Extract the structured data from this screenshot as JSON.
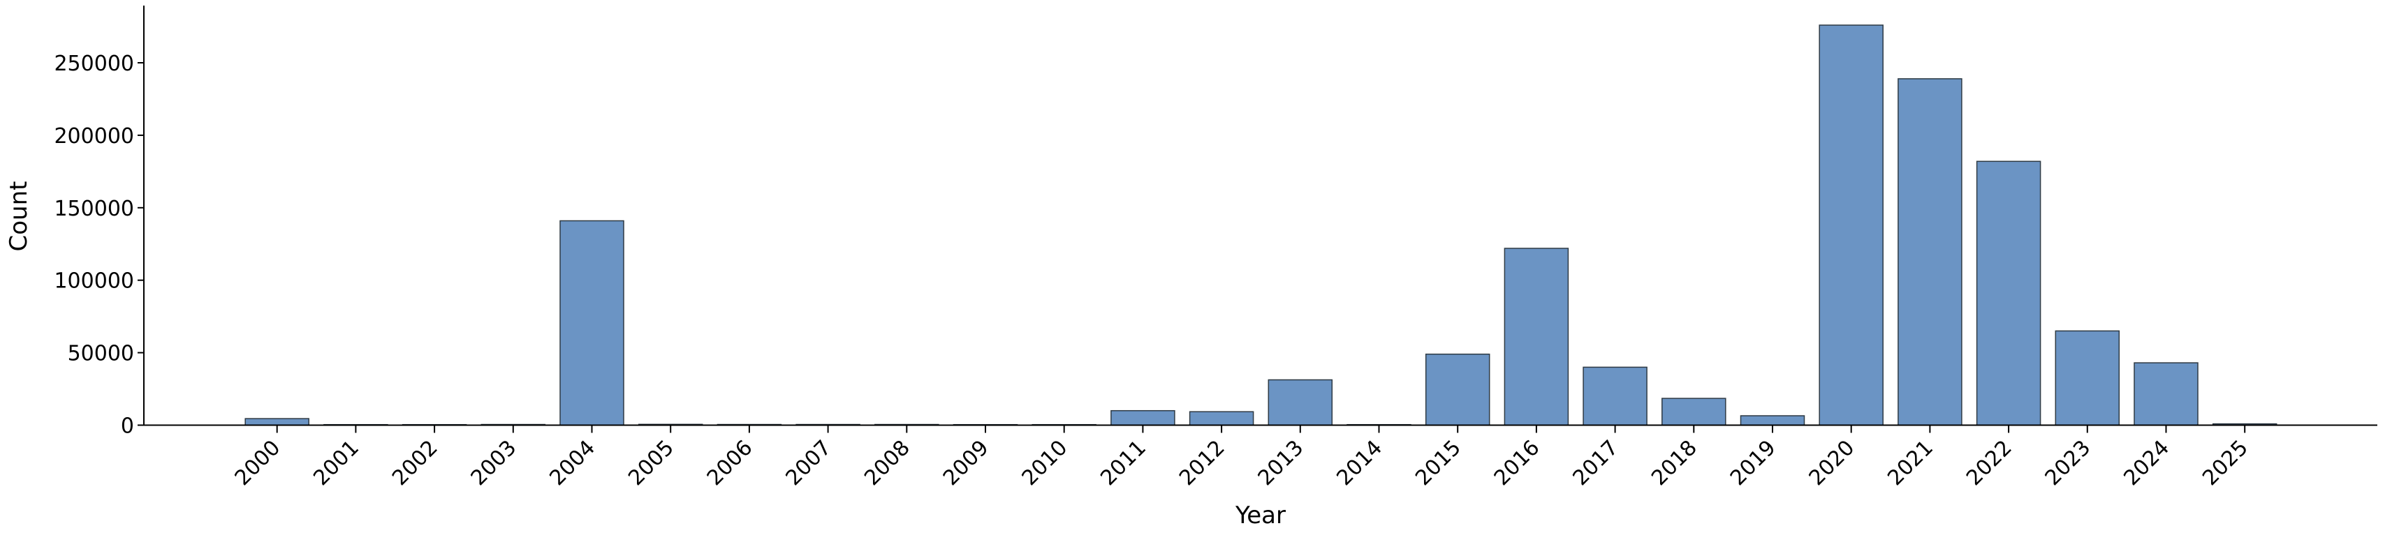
{
  "chart_data": {
    "type": "bar",
    "title": "",
    "xlabel": "Year",
    "ylabel": "Count",
    "categories": [
      "2000",
      "2001",
      "2002",
      "2003",
      "2004",
      "2005",
      "2006",
      "2007",
      "2008",
      "2009",
      "2010",
      "2011",
      "2012",
      "2013",
      "2014",
      "2015",
      "2016",
      "2017",
      "2018",
      "2019",
      "2020",
      "2021",
      "2022",
      "2023",
      "2024",
      "2025"
    ],
    "values": [
      4500,
      400,
      400,
      500,
      141000,
      600,
      500,
      500,
      500,
      400,
      400,
      10000,
      9300,
      31300,
      400,
      49000,
      122000,
      40000,
      18500,
      6500,
      276000,
      239000,
      182000,
      65000,
      43000,
      900
    ],
    "yticks": [
      0,
      50000,
      100000,
      150000,
      200000,
      250000
    ],
    "ylim": [
      0,
      290000
    ],
    "x_tick_rotation_deg": 45,
    "grid": false,
    "legend_position": "none",
    "bar_fill_color": "#6b94c4",
    "bar_edge_color": "#2e3a44",
    "axis_color": "#000000",
    "text_color": "#000000",
    "background_color": "#ffffff"
  }
}
